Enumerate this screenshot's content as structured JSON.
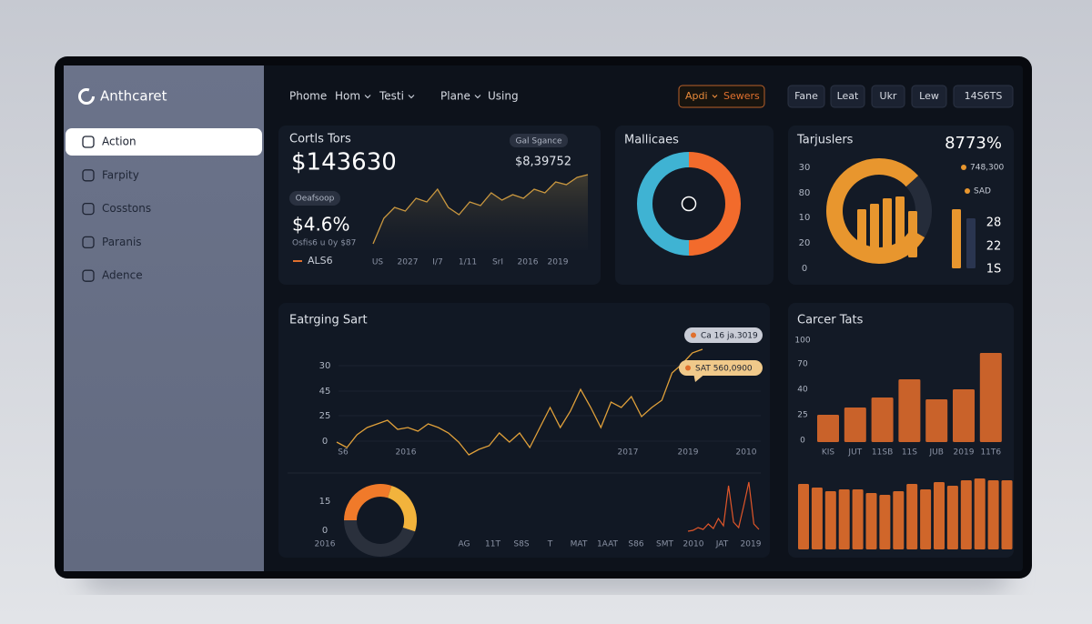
{
  "brand": "Anthcaret",
  "sidebar": {
    "items": [
      "Action",
      "Farpity",
      "Cosstons",
      "Paranis",
      "Adence"
    ],
    "active": 0
  },
  "nav": {
    "links": [
      "Phome",
      "Hom",
      "Testi",
      "Plane",
      "Using"
    ],
    "dropdown": [
      false,
      true,
      true,
      true,
      false
    ]
  },
  "actions": {
    "highlight": [
      "Apdi",
      "Sewers"
    ],
    "buttons": [
      "Fane",
      "Leat",
      "Ukr",
      "Lew",
      "14S6TS"
    ]
  },
  "summary": {
    "title": "Cortls Tors",
    "value": "$143630",
    "badge": "Gal Sgance",
    "side_value": "$8,39752",
    "badge2": "Oeafsoop",
    "change": "$4.6%",
    "change_note": "Osfis6 u 0y $87",
    "legend": "ALS6",
    "chart": {
      "type": "area",
      "color": "#c9973f",
      "values": [
        7,
        35,
        47,
        43,
        57,
        53,
        67,
        47,
        39,
        53,
        49,
        63,
        55,
        61,
        57,
        67,
        63,
        75,
        72,
        80,
        83
      ],
      "ylim": [
        0,
        100
      ],
      "x_labels": [
        "US",
        "2027",
        "I/7",
        "1/11",
        "SrI",
        "2016",
        "2019"
      ]
    }
  },
  "mix": {
    "title": "Mallicaes",
    "chart": {
      "type": "donut",
      "values": [
        50,
        50
      ],
      "colors": [
        "#f26b2c",
        "#3fb3d3"
      ]
    }
  },
  "targets": {
    "title": "Tarjuslers",
    "value": "8773%",
    "y_labels": [
      "30",
      "80",
      "10",
      "20",
      "0"
    ],
    "ring": {
      "type": "donut",
      "values": [
        80,
        20
      ],
      "colors": [
        "#e8962e",
        "#252c3a"
      ]
    },
    "bars": {
      "type": "bar",
      "values": [
        53,
        59,
        65,
        67,
        51
      ],
      "color": "#e8962e",
      "ylim": [
        0,
        100
      ]
    },
    "side_bars": {
      "type": "bar",
      "values": [
        65,
        55
      ],
      "colors": [
        "#e8962e",
        "#2a3550"
      ],
      "ylim": [
        0,
        100
      ]
    },
    "legend": [
      "748,300",
      "SAD"
    ],
    "figures": [
      "28",
      "22",
      "1S"
    ]
  },
  "trend": {
    "title": "Eatrging Sart",
    "y_labels": [
      "30",
      "45",
      "25",
      "0"
    ],
    "chart": {
      "type": "line",
      "color": "#e0a03a",
      "values": [
        19,
        13,
        27,
        35,
        39,
        43,
        33,
        35,
        31,
        39,
        35,
        29,
        19,
        5,
        11,
        15,
        29,
        19,
        29,
        13,
        35,
        57,
        35,
        53,
        77,
        57,
        35,
        63,
        57,
        69,
        47,
        57,
        65,
        95,
        105,
        117,
        121
      ],
      "ylim": [
        0,
        130
      ],
      "x_labels": [
        "S6",
        "2016",
        "2017",
        "2019",
        "2010"
      ]
    },
    "tooltips": [
      "Ca 16 ja.3019",
      "SAT 560,0900"
    ],
    "sub": {
      "y_labels": [
        "15",
        "0"
      ],
      "ring": {
        "type": "donut",
        "values": [
          30,
          25,
          45
        ],
        "colors": [
          "#f07a2a",
          "#f2b33c",
          "#2a303c"
        ]
      },
      "spikes": {
        "type": "line",
        "color": "#e0562a",
        "values": [
          0,
          1,
          4,
          2,
          8,
          3,
          14,
          6,
          50,
          10,
          4,
          28,
          54,
          8,
          2
        ],
        "ylim": [
          0,
          60
        ]
      },
      "x_labels": [
        "2016",
        "AG",
        "11T",
        "S8S",
        "T",
        "MAT",
        "1AAT",
        "S86",
        "SMT",
        "2010",
        "JAT",
        "2019"
      ]
    }
  },
  "career": {
    "title": "Carcer Tats",
    "y_labels": [
      "100",
      "70",
      "40",
      "25",
      "0"
    ],
    "chart": {
      "type": "bar",
      "color": "#c9622a",
      "values": [
        30,
        38,
        49,
        69,
        47,
        58,
        98
      ],
      "ylim": [
        0,
        112
      ],
      "x_labels": [
        "KIS",
        "JUT",
        "11SB",
        "11S",
        "JUB",
        "2019",
        "11T6"
      ]
    },
    "lower": {
      "type": "bar",
      "color": "#d0662a",
      "values": [
        72,
        68,
        64,
        66,
        66,
        62,
        60,
        64,
        72,
        66,
        74,
        70,
        76,
        78,
        76,
        76
      ],
      "ylim": [
        0,
        80
      ]
    }
  }
}
